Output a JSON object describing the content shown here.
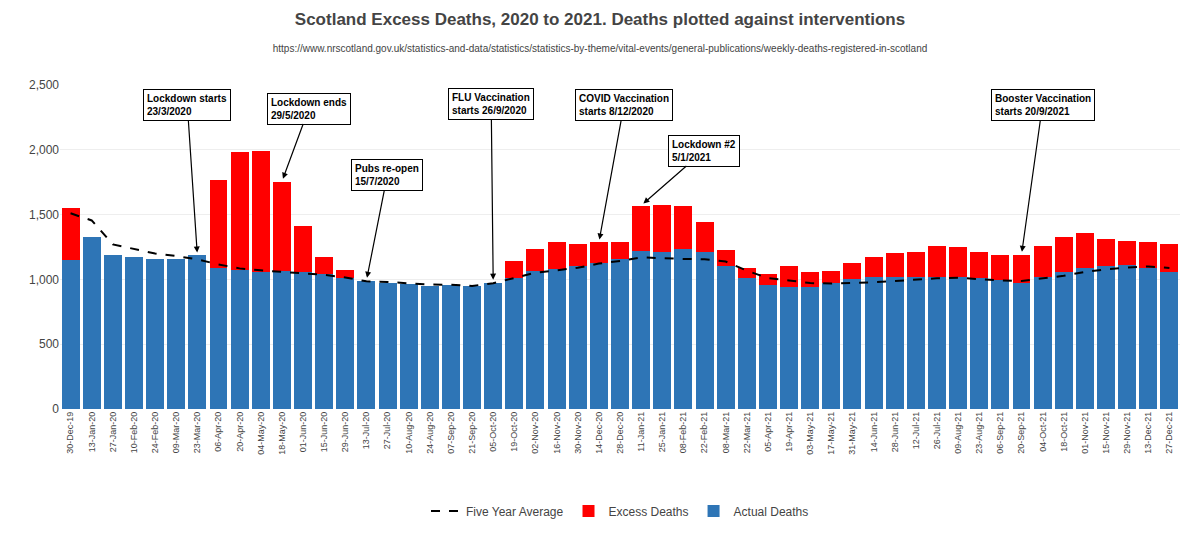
{
  "chart_data": {
    "type": "bar",
    "title": "Scotland Excess Deaths, 2020 to 2021. Deaths plotted against interventions",
    "subtitle": "https://www.nrscotland.gov.uk/statistics-and-data/statistics/statistics-by-theme/vital-events/general-publications/weekly-deaths-registered-in-scotland",
    "stacked": true,
    "grid": true,
    "legend": "bottom",
    "ylim": [
      0,
      2500
    ],
    "yticks": [
      0,
      500,
      {
        "value": 1000,
        "label": "1,000"
      },
      {
        "value": 1500,
        "label": "1,500"
      },
      {
        "value": 2000,
        "label": "2,000"
      },
      {
        "value": 2500,
        "label": "2,500"
      }
    ],
    "categories": [
      "30-Dec-19",
      "13-Jan-20",
      "27-Jan-20",
      "10-Feb-20",
      "24-Feb-20",
      "09-Mar-20",
      "23-Mar-20",
      "06-Apr-20",
      "20-Apr-20",
      "04-May-20",
      "18-May-20",
      "01-Jun-20",
      "15-Jun-20",
      "29-Jun-20",
      "13-Jul-20",
      "27-Jul-20",
      "10-Aug-20",
      "24-Aug-20",
      "07-Sep-20",
      "21-Sep-20",
      "05-Oct-20",
      "19-Oct-20",
      "02-Nov-20",
      "16-Nov-20",
      "30-Nov-20",
      "14-Dec-20",
      "28-Dec-20",
      "11-Jan-21",
      "25-Jan-21",
      "08-Feb-21",
      "22-Feb-21",
      "08-Mar-21",
      "22-Mar-21",
      "05-Apr-21",
      "19-Apr-21",
      "03-May-21",
      "17-May-21",
      "31-May-21",
      "14-Jun-21",
      "28-Jun-21",
      "12-Jul-21",
      "26-Jul-21",
      "09-Aug-21",
      "23-Aug-21",
      "06-Sep-21",
      "20-Sep-21",
      "04-Oct-21",
      "18-Oct-21",
      "01-Nov-21",
      "15-Nov-21",
      "29-Nov-21",
      "13-Dec-21",
      "27-Dec-21"
    ],
    "series": [
      {
        "name": "Actual Deaths",
        "type": "bar",
        "color": "#2E75B6",
        "values": [
          1150,
          1330,
          1190,
          1175,
          1155,
          1155,
          1185,
          1090,
          1075,
          1060,
          1065,
          1060,
          1040,
          1010,
          990,
          975,
          965,
          950,
          960,
          950,
          975,
          1010,
          1065,
          1080,
          1100,
          1130,
          1155,
          1220,
          1215,
          1235,
          1215,
          1100,
          1010,
          960,
          945,
          945,
          970,
          1005,
          1015,
          1020,
          1015,
          1020,
          1015,
          1010,
          995,
          975,
          1020,
          1060,
          1085,
          1100,
          1110,
          1090,
          1060
        ]
      },
      {
        "name": "Excess Deaths",
        "type": "bar",
        "color": "#FF0000",
        "values": [
          400,
          0,
          0,
          0,
          0,
          0,
          0,
          680,
          910,
          930,
          690,
          350,
          130,
          60,
          0,
          0,
          0,
          0,
          0,
          0,
          0,
          130,
          170,
          210,
          175,
          155,
          135,
          350,
          360,
          330,
          230,
          130,
          80,
          80,
          155,
          115,
          95,
          120,
          155,
          185,
          200,
          235,
          235,
          205,
          195,
          215,
          240,
          270,
          275,
          215,
          185,
          200,
          210
        ]
      },
      {
        "name": "Five Year Average",
        "type": "line",
        "line_style": "dashed",
        "color": "#000000",
        "values": [
          1510,
          1455,
          1270,
          1235,
          1200,
          1180,
          1155,
          1115,
          1085,
          1070,
          1060,
          1045,
          1035,
          1015,
          985,
          980,
          968,
          960,
          958,
          950,
          970,
          1010,
          1052,
          1070,
          1090,
          1122,
          1142,
          1170,
          1162,
          1158,
          1155,
          1138,
          1068,
          1010,
          992,
          972,
          968,
          972,
          978,
          988,
          998,
          1008,
          1012,
          1002,
          993,
          988,
          1008,
          1028,
          1058,
          1078,
          1092,
          1100,
          1088
        ]
      }
    ],
    "annotations": [
      {
        "text": "Lockdown starts\n23/3/2020",
        "x": "23-Mar-20"
      },
      {
        "text": "Lockdown ends\n29/5/2020",
        "x": "18-May-20"
      },
      {
        "text": "FLU Vaccination\nstarts 26/9/2020",
        "x": "05-Oct-20"
      },
      {
        "text": "COVID Vaccination\nstarts 8/12/2020",
        "x": "14-Dec-20"
      },
      {
        "text": "Lockdown #2\n5/1/2021",
        "x": "11-Jan-21"
      },
      {
        "text": "Pubs re-open\n15/7/2020",
        "x": "13-Jul-20"
      },
      {
        "text": "Booster Vaccination\nstarts 20/9/2021",
        "x": "20-Sep-21"
      }
    ]
  }
}
